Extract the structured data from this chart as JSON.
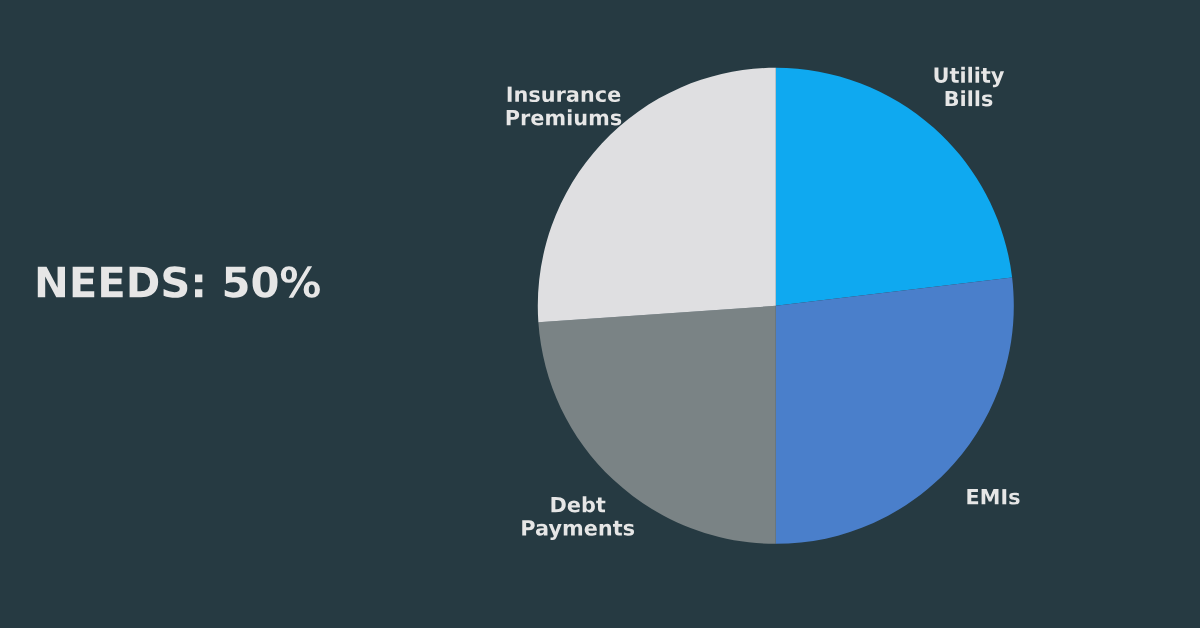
{
  "chart_data": {
    "type": "pie",
    "title": "NEEDS: 50%",
    "categories": [
      "Utility Bills",
      "EMIs",
      "Debt Payments",
      "Insurance Premiums"
    ],
    "values": [
      23.1,
      26.9,
      23.9,
      26.1
    ],
    "colors": [
      "#0fa9f0",
      "#4a7fcb",
      "#7a8385",
      "#dfdfe1"
    ],
    "legend": false
  }
}
